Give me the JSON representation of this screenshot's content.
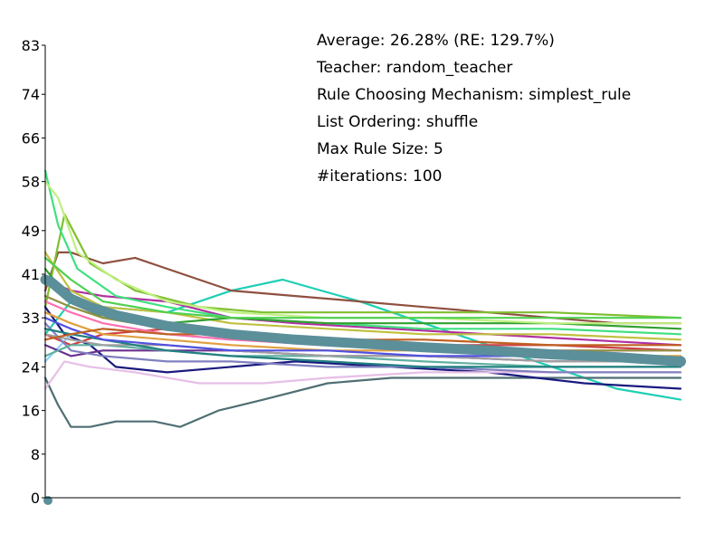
{
  "chart_data": {
    "type": "line",
    "title": "",
    "xlabel": "",
    "ylabel": "",
    "ylim": [
      0,
      83
    ],
    "xlim": [
      1,
      100
    ],
    "yticks": [
      "0",
      "8",
      "16",
      "24",
      "33",
      "41",
      "49",
      "58",
      "66",
      "74",
      "83"
    ],
    "grid": false,
    "legend": "none",
    "info_lines": [
      "Average: 26.28% (RE: 129.7%)",
      "Teacher: random_teacher",
      "Rule Choosing Mechanism: simplest_rule",
      "List Ordering: shuffle",
      "Max Rule Size: 5",
      "#iterations: 100"
    ],
    "average_series": {
      "color": "#5b8f9a",
      "x": [
        1,
        2,
        3,
        5,
        8,
        12,
        20,
        30,
        40,
        50,
        60,
        70,
        80,
        90,
        100
      ],
      "y": [
        40,
        39.5,
        38.5,
        36.5,
        35,
        33.5,
        31.5,
        30,
        29,
        28.3,
        27.6,
        27,
        26.3,
        25.8,
        25
      ]
    },
    "series": [
      {
        "color": "#1fcfb4",
        "x": [
          1,
          5,
          10,
          20,
          30,
          38,
          50,
          60,
          70,
          80,
          90,
          100
        ],
        "y": [
          30,
          36,
          35,
          34,
          38,
          40,
          36,
          32,
          28,
          24,
          20,
          18
        ]
      },
      {
        "color": "#4f6f73",
        "x": [
          1,
          3,
          5,
          8,
          12,
          18,
          22,
          28,
          35,
          45,
          55,
          70,
          85,
          100
        ],
        "y": [
          22,
          17,
          13,
          13,
          14,
          14,
          13,
          16,
          18,
          21,
          22,
          22,
          22,
          22
        ]
      },
      {
        "color": "#8f5040",
        "x": [
          1,
          3,
          5,
          10,
          15,
          20,
          30,
          40,
          50,
          60,
          70,
          80,
          90,
          100
        ],
        "y": [
          38,
          45,
          45,
          43,
          44,
          42,
          38,
          37,
          36,
          35,
          34,
          33,
          32,
          32
        ]
      },
      {
        "color": "#7fbf2f",
        "x": [
          1,
          4,
          8,
          15,
          25,
          35,
          50,
          65,
          80,
          100
        ],
        "y": [
          35,
          52,
          43,
          38,
          35,
          34,
          34,
          34,
          34,
          33
        ]
      },
      {
        "color": "#1a1a7f",
        "x": [
          1,
          4,
          8,
          12,
          20,
          30,
          40,
          55,
          70,
          85,
          100
        ],
        "y": [
          35,
          30,
          28,
          24,
          23,
          24,
          25,
          24,
          23,
          21,
          20
        ]
      },
      {
        "color": "#e6bfe6",
        "x": [
          1,
          4,
          8,
          15,
          25,
          35,
          45,
          60,
          80,
          100
        ],
        "y": [
          20,
          25,
          24,
          23,
          21,
          21,
          22,
          23,
          23,
          23
        ]
      },
      {
        "color": "#b030a0",
        "x": [
          1,
          5,
          10,
          20,
          30,
          40,
          55,
          70,
          85,
          100
        ],
        "y": [
          40,
          38,
          37,
          36,
          33,
          32,
          31,
          30,
          29,
          28
        ]
      },
      {
        "color": "#90d0ff",
        "x": [
          1,
          5,
          10,
          20,
          30,
          45,
          60,
          80,
          100
        ],
        "y": [
          25,
          30,
          31,
          30,
          29,
          29,
          28,
          28,
          27
        ]
      },
      {
        "color": "#c0c040",
        "x": [
          1,
          5,
          10,
          20,
          30,
          45,
          60,
          80,
          100
        ],
        "y": [
          45,
          38,
          35,
          34,
          32,
          31,
          30,
          30,
          29
        ]
      },
      {
        "color": "#40e080",
        "x": [
          1,
          3,
          6,
          12,
          20,
          30,
          45,
          60,
          80,
          100
        ],
        "y": [
          60,
          50,
          42,
          37,
          35,
          33,
          32,
          31,
          31,
          30
        ]
      },
      {
        "color": "#d04040",
        "x": [
          1,
          5,
          10,
          20,
          30,
          45,
          60,
          80,
          100
        ],
        "y": [
          30,
          28,
          30,
          31,
          30,
          29,
          28,
          28,
          27
        ]
      },
      {
        "color": "#6a3090",
        "x": [
          1,
          5,
          10,
          20,
          30,
          45,
          60,
          80,
          100
        ],
        "y": [
          28,
          26,
          27,
          27,
          27,
          26,
          26,
          25,
          25
        ]
      },
      {
        "color": "#30a030",
        "x": [
          1,
          5,
          10,
          20,
          30,
          45,
          60,
          80,
          100
        ],
        "y": [
          42,
          36,
          33,
          32,
          33,
          32,
          32,
          32,
          31
        ]
      },
      {
        "color": "#e0a040",
        "x": [
          1,
          5,
          10,
          20,
          30,
          45,
          60,
          80,
          100
        ],
        "y": [
          34,
          32,
          30,
          29,
          28,
          27,
          27,
          26,
          26
        ]
      },
      {
        "color": "#8080c0",
        "x": [
          1,
          5,
          10,
          20,
          30,
          45,
          60,
          80,
          100
        ],
        "y": [
          32,
          27,
          26,
          25,
          25,
          24,
          24,
          23,
          23
        ]
      },
      {
        "color": "#c0f080",
        "x": [
          1,
          3,
          6,
          12,
          20,
          30,
          45,
          60,
          80,
          100
        ],
        "y": [
          58,
          55,
          45,
          40,
          36,
          34,
          33,
          33,
          32,
          32
        ]
      },
      {
        "color": "#60b0a0",
        "x": [
          1,
          5,
          10,
          20,
          30,
          45,
          60,
          80,
          100
        ],
        "y": [
          26,
          28,
          28,
          27,
          26,
          26,
          25,
          24,
          24
        ]
      },
      {
        "color": "#a0a0a0",
        "x": [
          1,
          5,
          10,
          20,
          30,
          45,
          60,
          80,
          100
        ],
        "y": [
          30,
          29,
          28,
          28,
          27,
          26,
          26,
          25,
          25
        ]
      },
      {
        "color": "#ff70b0",
        "x": [
          1,
          5,
          10,
          20,
          30,
          45,
          60,
          80,
          100
        ],
        "y": [
          36,
          34,
          32,
          30,
          29,
          28,
          28,
          27,
          27
        ]
      },
      {
        "color": "#208080",
        "x": [
          1,
          5,
          10,
          20,
          30,
          45,
          60,
          80,
          100
        ],
        "y": [
          31,
          30,
          29,
          27,
          26,
          25,
          24,
          24,
          24
        ]
      },
      {
        "color": "#909040",
        "x": [
          1,
          5,
          10,
          20,
          30,
          45,
          60,
          80,
          100
        ],
        "y": [
          37,
          35,
          33,
          31,
          30,
          29,
          28,
          27,
          27
        ]
      },
      {
        "color": "#5050e0",
        "x": [
          1,
          5,
          10,
          20,
          30,
          45,
          60,
          80,
          100
        ],
        "y": [
          33,
          31,
          29,
          28,
          27,
          27,
          26,
          26,
          25
        ]
      },
      {
        "color": "#c06020",
        "x": [
          1,
          5,
          10,
          20,
          30,
          45,
          60,
          80,
          100
        ],
        "y": [
          29,
          30,
          31,
          30,
          30,
          29,
          29,
          28,
          28
        ]
      },
      {
        "color": "#50d050",
        "x": [
          1,
          5,
          10,
          20,
          30,
          45,
          60,
          80,
          100
        ],
        "y": [
          44,
          40,
          36,
          34,
          33,
          33,
          33,
          33,
          33
        ]
      }
    ]
  }
}
